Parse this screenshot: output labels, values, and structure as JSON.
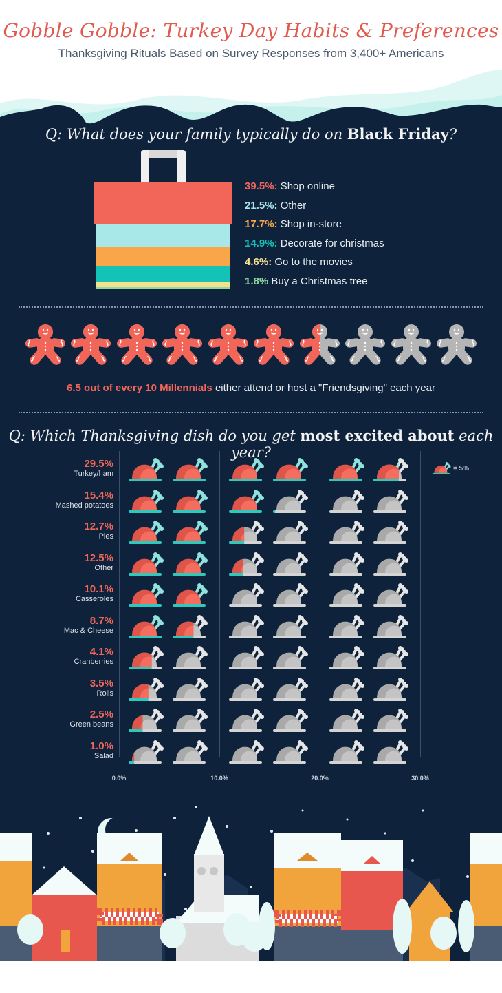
{
  "header": {
    "title": "Gobble Gobble: Turkey Day Habits & Preferences",
    "subtitle": "Thanksgiving Rituals Based on Survey Responses from 3,400+ Americans"
  },
  "black_friday": {
    "question_prefix": "Q: What does your family typically do on ",
    "question_bold": "Black Friday",
    "question_suffix": "?",
    "items": [
      {
        "pct": "39.5%:",
        "label": " Shop online",
        "color": "#f2665a"
      },
      {
        "pct": "21.5%:",
        "label": " Other",
        "color": "#a8e8e8"
      },
      {
        "pct": "17.7%:",
        "label": " Shop in-store",
        "color": "#f9a54a"
      },
      {
        "pct": "14.9%:",
        "label": " Decorate for christmas",
        "color": "#14c2b8"
      },
      {
        "pct": "4.6%:",
        "label": " Go to the movies",
        "color": "#f5e08e"
      },
      {
        "pct": "1.8%",
        "label": " Buy a Christmas tree",
        "color": "#8fd8a0"
      }
    ]
  },
  "friendsgiving": {
    "filled": 6.5,
    "total": 10,
    "caption_highlight": "6.5 out of every 10 Millennials",
    "caption_rest": " either attend or host a \"Friendsgiving\" each year"
  },
  "dishes": {
    "question_prefix": "Q: Which Thanksgiving dish do you get ",
    "question_bold": "most excited about",
    "question_suffix": " each year?",
    "legend_label": "= 5%",
    "x_ticks": [
      "0.0%",
      "10.0%",
      "20.0%",
      "30.0%"
    ]
  },
  "chart_data": {
    "type": "bar",
    "title": "Which Thanksgiving dish do you get most excited about each year?",
    "xlabel": "",
    "ylabel": "",
    "unit_icon": "turkey = 5%",
    "xlim": [
      0,
      30
    ],
    "categories": [
      "Turkey/ham",
      "Mashed potatoes",
      "Pies",
      "Other",
      "Casseroles",
      "Mac & Cheese",
      "Cranberries",
      "Rolls",
      "Green beans",
      "Salad"
    ],
    "values": [
      29.5,
      15.4,
      12.7,
      12.5,
      10.1,
      8.7,
      4.1,
      3.5,
      2.5,
      1.0
    ],
    "labels": [
      "29.5%",
      "15.4%",
      "12.7%",
      "12.5%",
      "10.1%",
      "8.7%",
      "4.1%",
      "3.5%",
      "2.5%",
      "1.0%"
    ],
    "secondary": [
      {
        "type": "stacked-bar",
        "title": "What does your family typically do on Black Friday?",
        "categories": [
          "Shop online",
          "Other",
          "Shop in-store",
          "Decorate for christmas",
          "Go to the movies",
          "Buy a Christmas tree"
        ],
        "values": [
          39.5,
          21.5,
          17.7,
          14.9,
          4.6,
          1.8
        ]
      },
      {
        "type": "pictogram",
        "title": "Millennials attending or hosting Friendsgiving",
        "value": 6.5,
        "out_of": 10
      }
    ]
  }
}
